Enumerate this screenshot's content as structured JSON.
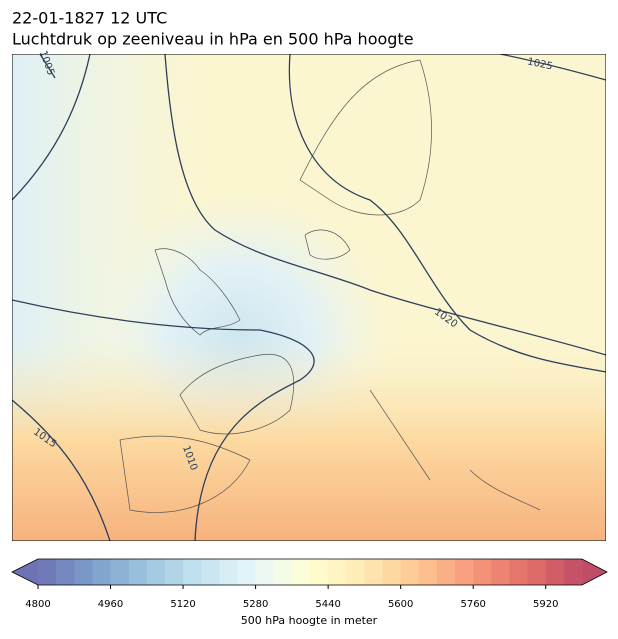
{
  "header": {
    "title": "22-01-1827 12 UTC",
    "subtitle": "Luchtdruk op zeeniveau in hPa en 500 hPa hoogte"
  },
  "map": {
    "contour_labels": [
      "1005",
      "1025",
      "1020",
      "1015",
      "1010"
    ]
  },
  "colorbar": {
    "label": "500 hPa hoogte in meter",
    "min": 4800,
    "max": 6000,
    "step": 40,
    "ticks": [
      4800,
      4960,
      5120,
      5280,
      5440,
      5600,
      5760,
      5920
    ]
  }
}
